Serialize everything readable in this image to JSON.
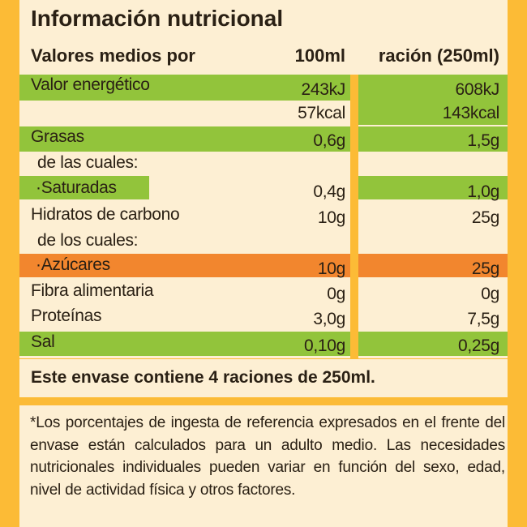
{
  "title": "Información nutricional",
  "header": {
    "label": "Valores medios por",
    "col1": "100ml",
    "col2": "ración (250ml)"
  },
  "rows": [
    {
      "label": "Valor energético",
      "v100": "243kJ",
      "vserv": "608kJ"
    },
    {
      "label": "",
      "v100": "57kcal",
      "vserv": "143kcal"
    },
    {
      "label": "Grasas",
      "v100": "0,6g",
      "vserv": "1,5g"
    },
    {
      "label": "de las cuales:",
      "v100": "",
      "vserv": ""
    },
    {
      "label": "·Saturadas",
      "v100": "0,4g",
      "vserv": "1,0g"
    },
    {
      "label": "Hidratos de carbono",
      "v100": "10g",
      "vserv": "25g"
    },
    {
      "label": "de los cuales:",
      "v100": "",
      "vserv": ""
    },
    {
      "label": "·Azúcares",
      "v100": "10g",
      "vserv": "25g"
    },
    {
      "label": "Fibra alimentaria",
      "v100": "0g",
      "vserv": "0g"
    },
    {
      "label": "Proteínas",
      "v100": "3,0g",
      "vserv": "7,5g"
    },
    {
      "label": "Sal",
      "v100": "0,10g",
      "vserv": "0,25g"
    }
  ],
  "footer": "Este envase contiene 4 raciones de 250ml.",
  "note": "*Los porcentajes de ingesta de referencia expresados en el frente del envase están calculados para un adulto medio. Las necesidades nutricionales individuales pueden variar en función del sexo, edad, nivel de actividad física y otros factores.",
  "colors": {
    "background": "#fcbb36",
    "panel": "#fdefd3",
    "green": "#92c43b",
    "orange": "#f2862e",
    "text": "#2a2014"
  }
}
